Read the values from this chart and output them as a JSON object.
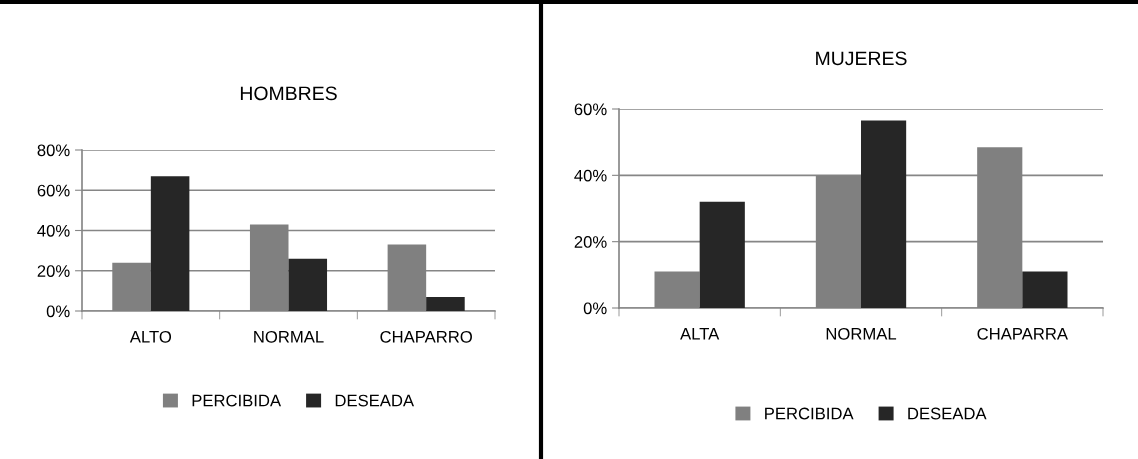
{
  "chart_data": [
    {
      "type": "bar",
      "title": "HOMBRES",
      "categories": [
        "ALTO",
        "NORMAL",
        "CHAPARRO"
      ],
      "series": [
        {
          "name": "PERCIBIDA",
          "color": "#808080",
          "values": [
            24,
            43,
            33
          ]
        },
        {
          "name": "DESEADA",
          "color": "#262626",
          "values": [
            67,
            26,
            7
          ]
        }
      ],
      "ylim": [
        0,
        80
      ],
      "yticks": [
        {
          "value": 0,
          "label": "0%"
        },
        {
          "value": 20,
          "label": "20%"
        },
        {
          "value": 40,
          "label": "40%"
        },
        {
          "value": 60,
          "label": "60%"
        },
        {
          "value": 80,
          "label": "80%"
        }
      ],
      "grid": "y",
      "legend": "bottom"
    },
    {
      "type": "bar",
      "title": "MUJERES",
      "categories": [
        "ALTA",
        "NORMAL",
        "CHAPARRA"
      ],
      "series": [
        {
          "name": "PERCIBIDA",
          "color": "#808080",
          "values": [
            11,
            40,
            48.5
          ]
        },
        {
          "name": "DESEADA",
          "color": "#262626",
          "values": [
            32,
            56.5,
            11
          ]
        }
      ],
      "ylim": [
        0,
        60
      ],
      "yticks": [
        {
          "value": 0,
          "label": "0%"
        },
        {
          "value": 20,
          "label": "20%"
        },
        {
          "value": 40,
          "label": "40%"
        },
        {
          "value": 60,
          "label": "60%"
        }
      ],
      "grid": "y",
      "legend": "bottom"
    }
  ]
}
